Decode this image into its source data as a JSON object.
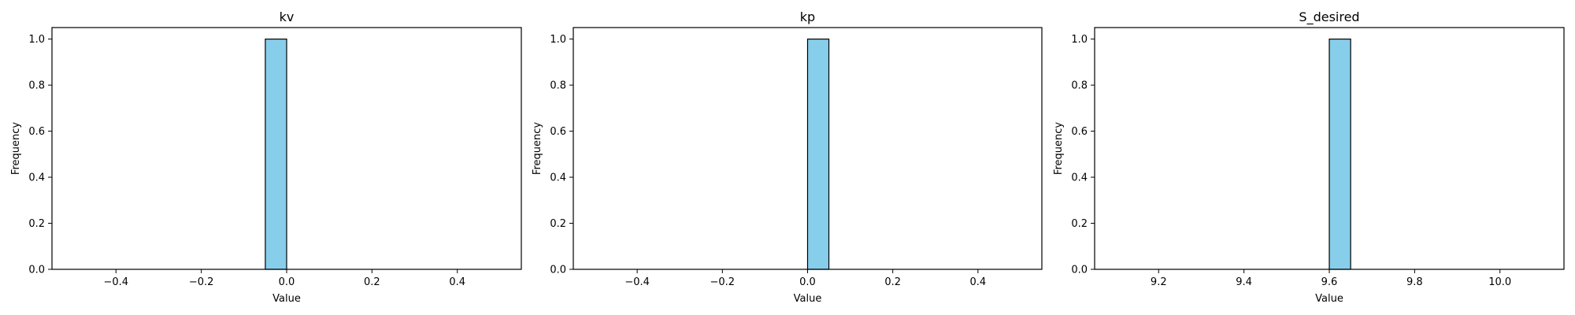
{
  "chart_data": [
    {
      "type": "bar",
      "title": "kv",
      "xlabel": "Value",
      "ylabel": "Frequency",
      "xlim": [
        -0.55,
        0.55
      ],
      "ylim": [
        0,
        1.05
      ],
      "xticks": [
        -0.4,
        -0.2,
        0.0,
        0.2,
        0.4
      ],
      "xtick_labels": [
        "−0.4",
        "−0.2",
        "0.0",
        "0.2",
        "0.4"
      ],
      "yticks": [
        0.0,
        0.2,
        0.4,
        0.6,
        0.8,
        1.0
      ],
      "ytick_labels": [
        "0.0",
        "0.2",
        "0.4",
        "0.6",
        "0.8",
        "1.0"
      ],
      "bins": {
        "start": -0.5,
        "width": 0.05,
        "values": [
          0,
          0,
          0,
          0,
          0,
          0,
          0,
          0,
          0,
          1,
          0,
          0,
          0,
          0,
          0,
          0,
          0,
          0,
          0,
          0
        ]
      },
      "grid": false,
      "bar_color": "#87ceeb",
      "edge_color": "#000000"
    },
    {
      "type": "bar",
      "title": "kp",
      "xlabel": "Value",
      "ylabel": "Frequency",
      "xlim": [
        -0.55,
        0.55
      ],
      "ylim": [
        0,
        1.05
      ],
      "xticks": [
        -0.4,
        -0.2,
        0.0,
        0.2,
        0.4
      ],
      "xtick_labels": [
        "−0.4",
        "−0.2",
        "0.0",
        "0.2",
        "0.4"
      ],
      "yticks": [
        0.0,
        0.2,
        0.4,
        0.6,
        0.8,
        1.0
      ],
      "ytick_labels": [
        "0.0",
        "0.2",
        "0.4",
        "0.6",
        "0.8",
        "1.0"
      ],
      "bins": {
        "start": -0.5,
        "width": 0.05,
        "values": [
          0,
          0,
          0,
          0,
          0,
          0,
          0,
          0,
          0,
          0,
          1,
          0,
          0,
          0,
          0,
          0,
          0,
          0,
          0,
          0
        ]
      },
      "grid": false,
      "bar_color": "#87ceeb",
      "edge_color": "#000000"
    },
    {
      "type": "bar",
      "title": "S_desired",
      "xlabel": "Value",
      "ylabel": "Frequency",
      "xlim": [
        9.05,
        10.15
      ],
      "ylim": [
        0,
        1.05
      ],
      "xticks": [
        9.2,
        9.4,
        9.6,
        9.8,
        10.0
      ],
      "xtick_labels": [
        "9.2",
        "9.4",
        "9.6",
        "9.8",
        "10.0"
      ],
      "yticks": [
        0.0,
        0.2,
        0.4,
        0.6,
        0.8,
        1.0
      ],
      "ytick_labels": [
        "0.0",
        "0.2",
        "0.4",
        "0.6",
        "0.8",
        "1.0"
      ],
      "bins": {
        "start": 9.1,
        "width": 0.05,
        "values": [
          0,
          0,
          0,
          0,
          0,
          0,
          0,
          0,
          0,
          0,
          1,
          0,
          0,
          0,
          0,
          0,
          0,
          0,
          0,
          0
        ]
      },
      "grid": false,
      "bar_color": "#87ceeb",
      "edge_color": "#000000"
    }
  ]
}
